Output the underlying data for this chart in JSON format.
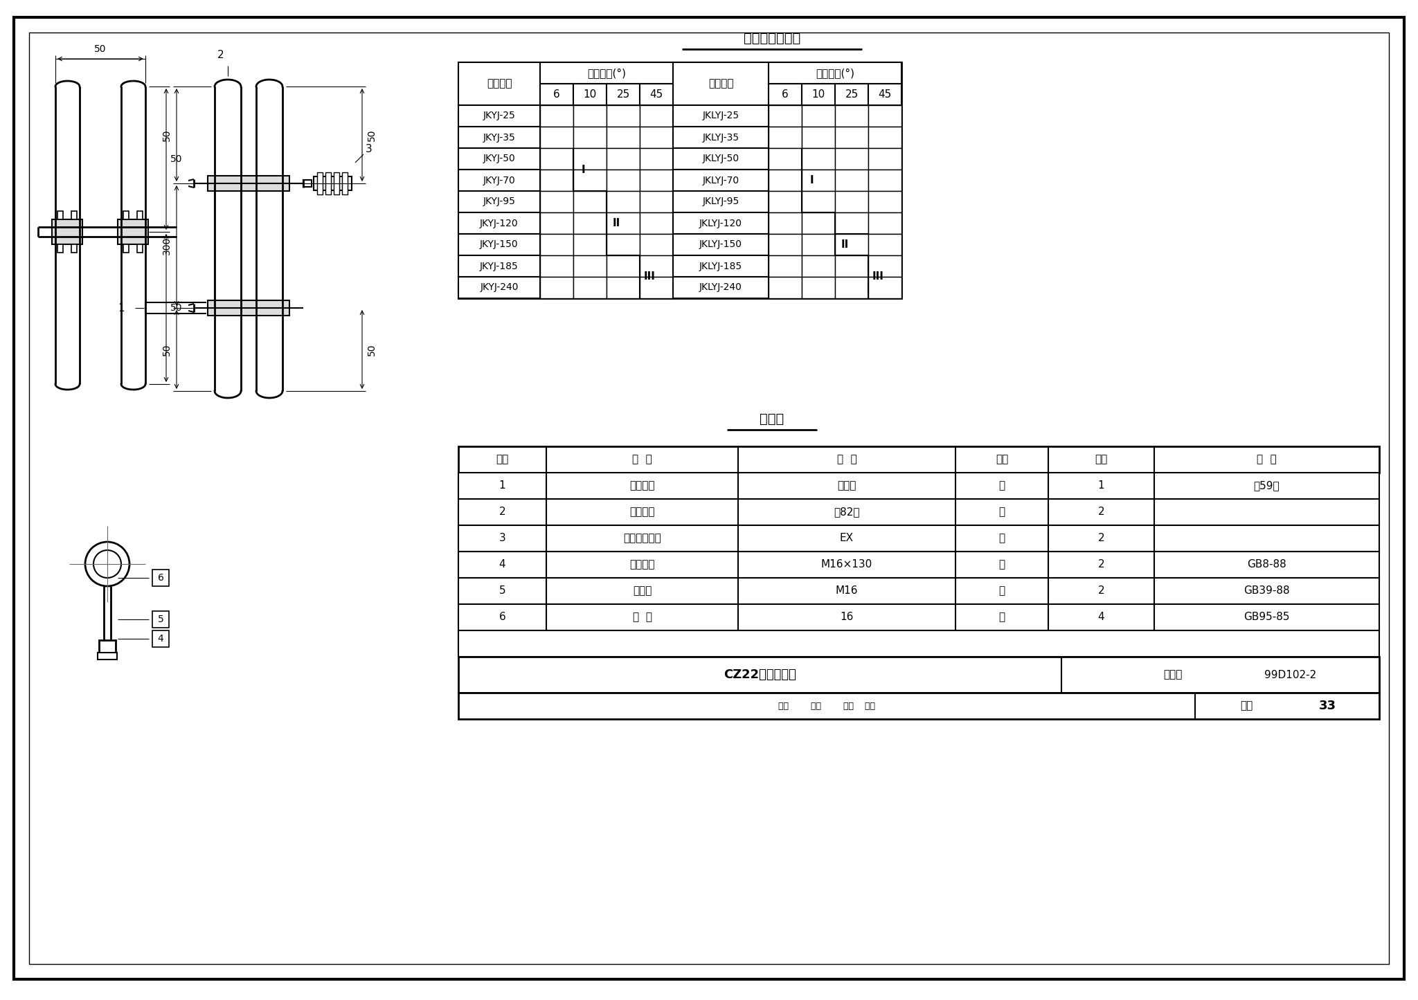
{
  "bg_color": "#ffffff",
  "title1": "槽钢横担选择表",
  "title2": "明细表",
  "drawing_title": "CZ22横担组装图",
  "atlas_label": "图集号",
  "atlas_value": "99D102-2",
  "page_label": "页号",
  "page_value": "33",
  "sel_rows_left": [
    "JKYJ-25",
    "JKYJ-35",
    "JKYJ-50",
    "JKYJ-70",
    "JKYJ-95",
    "JKYJ-120",
    "JKYJ-150",
    "JKYJ-185",
    "JKYJ-240"
  ],
  "sel_rows_right": [
    "JKLYJ-25",
    "JKLYJ-35",
    "JKLYJ-50",
    "JKLYJ-70",
    "JKLYJ-95",
    "JKLYJ-120",
    "JKLYJ-150",
    "JKLYJ-185",
    "JKLYJ-240"
  ],
  "sub_cols": [
    "6",
    "10",
    "25",
    "45"
  ],
  "detail_headers": [
    "序号",
    "名  称",
    "规  格",
    "单位",
    "数量",
    "附  注"
  ],
  "detail_rows": [
    [
      "1",
      "槽鉢横担",
      "见上表",
      "根",
      "1",
      "见59页"
    ],
    [
      "2",
      "槽鉢抱箍",
      "见82页",
      "付",
      "2",
      ""
    ],
    [
      "3",
      "线轴式绹缘子",
      "EX",
      "个",
      "2",
      ""
    ],
    [
      "4",
      "方头螺栓",
      "M16×130",
      "个",
      "2",
      "GB8-88"
    ],
    [
      "5",
      "方螺母",
      "M16",
      "个",
      "2",
      "GB39-88"
    ],
    [
      "6",
      "垫  圈",
      "16",
      "个",
      "4",
      "GB95-85"
    ]
  ]
}
